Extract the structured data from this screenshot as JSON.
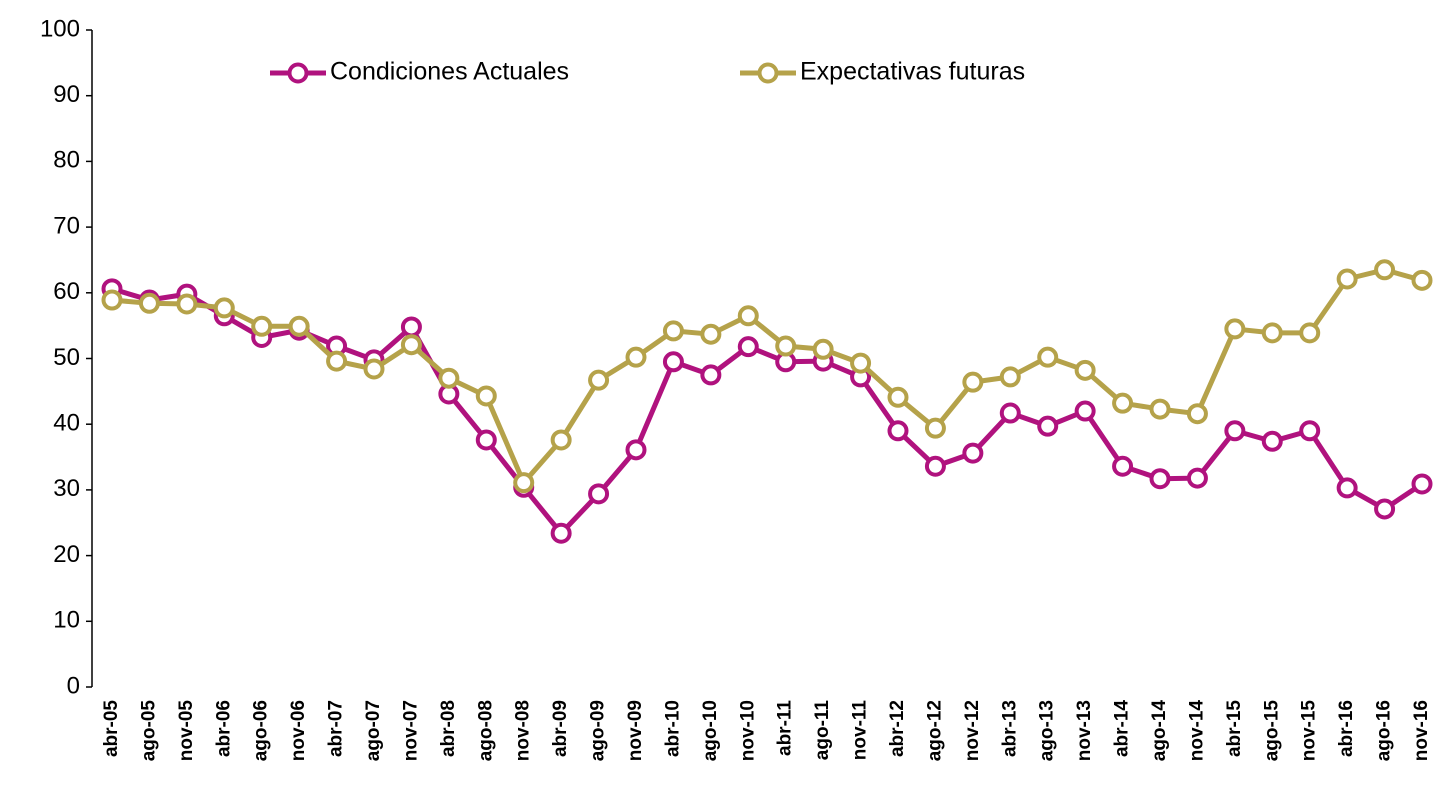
{
  "chart_data": {
    "type": "line",
    "categories": [
      "abr-05",
      "ago-05",
      "nov-05",
      "abr-06",
      "ago-06",
      "nov-06",
      "abr-07",
      "ago-07",
      "nov-07",
      "abr-08",
      "ago-08",
      "nov-08",
      "abr-09",
      "ago-09",
      "nov-09",
      "abr-10",
      "ago-10",
      "nov-10",
      "abr-11",
      "ago-11",
      "nov-11",
      "abr-12",
      "ago-12",
      "nov-12",
      "abr-13",
      "ago-13",
      "nov-13",
      "abr-14",
      "ago-14",
      "nov-14",
      "abr-15",
      "ago-15",
      "nov-15",
      "abr-16",
      "ago-16",
      "nov-16"
    ],
    "series": [
      {
        "name": "Condiciones Actuales",
        "color": "#b0127e",
        "values": [
          60.6,
          58.9,
          59.8,
          56.5,
          53.2,
          54.3,
          51.9,
          49.8,
          54.8,
          44.6,
          37.6,
          30.4,
          23.4,
          29.4,
          36.1,
          49.5,
          47.5,
          51.8,
          49.5,
          49.6,
          47.2,
          39.0,
          33.6,
          35.6,
          41.7,
          39.7,
          42.0,
          33.6,
          31.7,
          31.8,
          39.0,
          37.4,
          39.0,
          30.3,
          27.1,
          30.9
        ]
      },
      {
        "name": "Expectativas futuras",
        "color": "#b5a24a",
        "values": [
          58.9,
          58.4,
          58.3,
          57.7,
          54.9,
          54.9,
          49.6,
          48.4,
          52.1,
          47.0,
          44.3,
          31.1,
          37.6,
          46.7,
          50.2,
          54.2,
          53.7,
          56.5,
          51.9,
          51.4,
          49.3,
          44.1,
          39.4,
          46.4,
          47.2,
          50.2,
          48.2,
          43.2,
          42.3,
          41.6,
          54.5,
          53.9,
          53.9,
          62.1,
          63.5,
          61.9
        ]
      }
    ],
    "ylim": [
      0,
      100
    ],
    "yticks": [
      0,
      10,
      20,
      30,
      40,
      50,
      60,
      70,
      80,
      90,
      100
    ],
    "grid": false,
    "legend": "top"
  }
}
